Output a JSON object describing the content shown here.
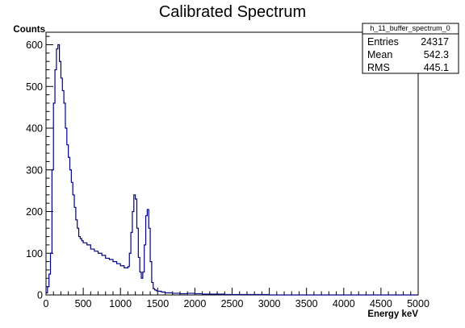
{
  "chart_data": {
    "type": "line",
    "title": "Calibrated Spectrum",
    "xlabel": "Energy  keV",
    "ylabel": "Counts",
    "xlim": [
      0,
      5000
    ],
    "ylim": [
      0,
      630
    ],
    "grid": false,
    "x_ticks": [
      0,
      500,
      1000,
      1500,
      2000,
      2500,
      3000,
      3500,
      4000,
      4500,
      5000
    ],
    "y_ticks": [
      0,
      100,
      200,
      300,
      400,
      500,
      600
    ],
    "stats_box": {
      "name": "h_11_buffer_spectrum_0",
      "rows": [
        {
          "label": "Entries",
          "value": "24317"
        },
        {
          "label": "Mean",
          "value": "542.3"
        },
        {
          "label": "RMS",
          "value": "445.1"
        }
      ]
    },
    "series": [
      {
        "color": "#000080",
        "step": true,
        "points": [
          [
            0,
            5
          ],
          [
            20,
            20
          ],
          [
            40,
            50
          ],
          [
            60,
            100
          ],
          [
            80,
            300
          ],
          [
            100,
            460
          ],
          [
            120,
            540
          ],
          [
            140,
            590
          ],
          [
            160,
            600
          ],
          [
            180,
            560
          ],
          [
            200,
            520
          ],
          [
            220,
            490
          ],
          [
            240,
            460
          ],
          [
            260,
            400
          ],
          [
            280,
            360
          ],
          [
            300,
            330
          ],
          [
            320,
            300
          ],
          [
            340,
            270
          ],
          [
            360,
            240
          ],
          [
            380,
            210
          ],
          [
            400,
            180
          ],
          [
            420,
            160
          ],
          [
            440,
            140
          ],
          [
            460,
            135
          ],
          [
            480,
            130
          ],
          [
            500,
            125
          ],
          [
            550,
            120
          ],
          [
            600,
            110
          ],
          [
            650,
            105
          ],
          [
            700,
            100
          ],
          [
            750,
            95
          ],
          [
            800,
            88
          ],
          [
            850,
            85
          ],
          [
            900,
            80
          ],
          [
            950,
            75
          ],
          [
            1000,
            70
          ],
          [
            1050,
            65
          ],
          [
            1100,
            68
          ],
          [
            1120,
            100
          ],
          [
            1140,
            150
          ],
          [
            1160,
            200
          ],
          [
            1180,
            240
          ],
          [
            1200,
            230
          ],
          [
            1220,
            160
          ],
          [
            1240,
            90
          ],
          [
            1260,
            55
          ],
          [
            1280,
            40
          ],
          [
            1300,
            55
          ],
          [
            1320,
            120
          ],
          [
            1340,
            190
          ],
          [
            1360,
            205
          ],
          [
            1380,
            160
          ],
          [
            1400,
            80
          ],
          [
            1420,
            30
          ],
          [
            1440,
            15
          ],
          [
            1460,
            12
          ],
          [
            1480,
            10
          ],
          [
            1500,
            9
          ],
          [
            1550,
            7
          ],
          [
            1600,
            5
          ],
          [
            1700,
            4
          ],
          [
            1800,
            3
          ],
          [
            1900,
            4
          ],
          [
            2000,
            3
          ],
          [
            2100,
            2
          ],
          [
            2200,
            2
          ],
          [
            2400,
            1
          ],
          [
            2600,
            1
          ],
          [
            2800,
            1
          ],
          [
            3000,
            0
          ],
          [
            5000,
            0
          ]
        ]
      }
    ]
  }
}
